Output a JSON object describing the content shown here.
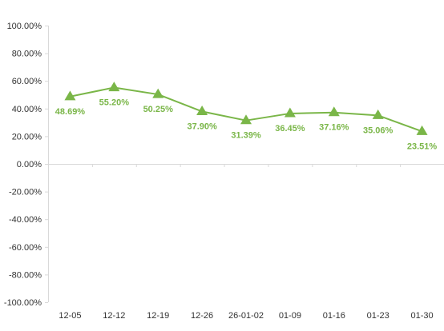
{
  "chart_data": {
    "type": "line",
    "categories": [
      "12-05",
      "12-12",
      "12-19",
      "12-26",
      "26-01-02",
      "01-09",
      "01-16",
      "01-23",
      "01-30"
    ],
    "series": [
      {
        "values": [
          48.69,
          55.2,
          50.25,
          37.9,
          31.39,
          36.45,
          37.16,
          35.06,
          23.51
        ],
        "labels": [
          "48.69%",
          "55.20%",
          "50.25%",
          "37.90%",
          "31.39%",
          "36.45%",
          "37.16%",
          "35.06%",
          "23.51%"
        ],
        "marker": "triangle"
      }
    ],
    "y_ticks": [
      "100.00%",
      "80.00%",
      "60.00%",
      "40.00%",
      "20.00%",
      "0.00%",
      "-20.00%",
      "-40.00%",
      "-60.00%",
      "-80.00%",
      "-100.00%"
    ],
    "ylim": [
      -100,
      100
    ],
    "grid": false,
    "title": "",
    "xlabel": "",
    "ylabel": ""
  },
  "colors": {
    "series": "#7ab648",
    "axis": "#d9d9d9",
    "text": "#333333"
  }
}
